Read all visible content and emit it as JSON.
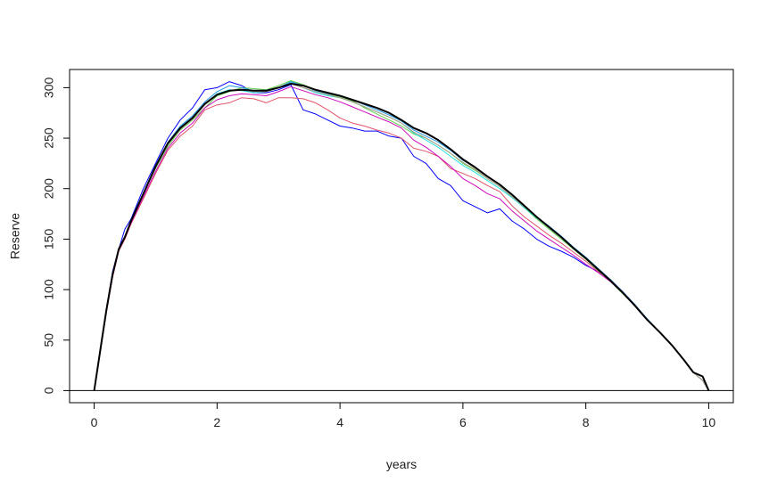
{
  "chart_data": {
    "type": "line",
    "title": "",
    "xlabel": "years",
    "ylabel": "Reserve",
    "xlim": [
      -0.4,
      10.4
    ],
    "ylim": [
      -12,
      318
    ],
    "xticks": [
      0,
      2,
      4,
      6,
      8,
      10
    ],
    "yticks": [
      0,
      50,
      100,
      150,
      200,
      250,
      300
    ],
    "xtick_labels": [
      "0",
      "2",
      "4",
      "6",
      "8",
      "10"
    ],
    "ytick_labels": [
      "0",
      "50",
      "100",
      "150",
      "200",
      "250",
      "300"
    ],
    "grid": false,
    "legend": "none",
    "reference_line_y": 0,
    "series": [
      {
        "color": "#0000ff",
        "width": 1,
        "x": [
          0,
          0.1,
          0.2,
          0.3,
          0.4,
          0.5,
          0.6,
          0.8,
          1.0,
          1.2,
          1.4,
          1.6,
          1.8,
          2.0,
          2.2,
          2.4,
          2.6,
          2.8,
          3.0,
          3.2,
          3.4,
          3.6,
          3.8,
          4.0,
          4.2,
          4.4,
          4.6,
          4.8,
          5.0,
          5.2,
          5.4,
          5.6,
          5.8,
          6.0,
          6.2,
          6.4,
          6.6,
          6.8,
          7.0,
          7.2,
          7.4,
          7.6,
          7.8,
          8.0,
          8.2,
          8.4,
          8.6,
          8.8,
          9.0,
          9.2,
          9.4,
          9.6,
          9.75,
          9.9,
          10.0
        ],
        "y": [
          0,
          40,
          80,
          118,
          140,
          160,
          170,
          200,
          225,
          250,
          268,
          280,
          298,
          300,
          306,
          302,
          295,
          295,
          298,
          303,
          278,
          274,
          268,
          262,
          260,
          257,
          257,
          252,
          250,
          232,
          225,
          210,
          203,
          188,
          182,
          176,
          180,
          168,
          160,
          150,
          143,
          138,
          132,
          124,
          118,
          110,
          98,
          85,
          70,
          58,
          45,
          30,
          18,
          10,
          0
        ]
      },
      {
        "color": "#df536b",
        "width": 1,
        "x": [
          0,
          0.1,
          0.2,
          0.3,
          0.4,
          0.5,
          0.6,
          0.8,
          1.0,
          1.2,
          1.4,
          1.6,
          1.8,
          2.0,
          2.2,
          2.4,
          2.6,
          2.8,
          3.0,
          3.2,
          3.4,
          3.6,
          3.8,
          4.0,
          4.2,
          4.4,
          4.6,
          4.8,
          5.0,
          5.2,
          5.4,
          5.6,
          5.8,
          6.0,
          6.2,
          6.4,
          6.6,
          6.8,
          7.0,
          7.2,
          7.4,
          7.6,
          7.8,
          8.0,
          8.2,
          8.4,
          8.6,
          8.8,
          9.0,
          9.2,
          9.4,
          9.6,
          9.75,
          9.9,
          10.0
        ],
        "y": [
          0,
          38,
          78,
          112,
          138,
          150,
          165,
          190,
          215,
          238,
          252,
          262,
          278,
          283,
          285,
          290,
          289,
          285,
          290,
          290,
          289,
          285,
          278,
          270,
          265,
          262,
          258,
          255,
          250,
          240,
          237,
          232,
          220,
          215,
          210,
          203,
          197,
          183,
          172,
          163,
          154,
          146,
          137,
          128,
          118,
          110,
          98,
          85,
          70,
          58,
          45,
          30,
          18,
          10,
          0
        ]
      },
      {
        "color": "#61d04f",
        "width": 1,
        "x": [
          0,
          0.1,
          0.2,
          0.3,
          0.4,
          0.5,
          0.6,
          0.8,
          1.0,
          1.2,
          1.4,
          1.6,
          1.8,
          2.0,
          2.2,
          2.4,
          2.6,
          2.8,
          3.0,
          3.2,
          3.4,
          3.6,
          3.8,
          4.0,
          4.2,
          4.4,
          4.6,
          4.8,
          5.0,
          5.2,
          5.4,
          5.6,
          5.8,
          6.0,
          6.2,
          6.4,
          6.6,
          6.8,
          7.0,
          7.2,
          7.4,
          7.6,
          7.8,
          8.0,
          8.2,
          8.4,
          8.6,
          8.8,
          9.0,
          9.2,
          9.4,
          9.6,
          9.75,
          9.9,
          10.0
        ],
        "y": [
          0,
          40,
          80,
          115,
          140,
          152,
          168,
          195,
          220,
          242,
          258,
          268,
          280,
          292,
          296,
          300,
          299,
          298,
          302,
          307,
          303,
          298,
          294,
          291,
          287,
          280,
          274,
          268,
          262,
          254,
          250,
          243,
          235,
          225,
          218,
          210,
          202,
          192,
          181,
          170,
          160,
          150,
          140,
          130,
          119,
          108,
          96,
          84,
          70,
          58,
          45,
          30,
          18,
          10,
          0
        ]
      },
      {
        "color": "#2297e6",
        "width": 1,
        "x": [
          0,
          0.1,
          0.2,
          0.3,
          0.4,
          0.5,
          0.6,
          0.8,
          1.0,
          1.2,
          1.4,
          1.6,
          1.8,
          2.0,
          2.2,
          2.4,
          2.6,
          2.8,
          3.0,
          3.2,
          3.4,
          3.6,
          3.8,
          4.0,
          4.2,
          4.4,
          4.6,
          4.8,
          5.0,
          5.2,
          5.4,
          5.6,
          5.8,
          6.0,
          6.2,
          6.4,
          6.6,
          6.8,
          7.0,
          7.2,
          7.4,
          7.6,
          7.8,
          8.0,
          8.2,
          8.4,
          8.6,
          8.8,
          9.0,
          9.2,
          9.4,
          9.6,
          9.75,
          9.9,
          10.0
        ],
        "y": [
          0,
          40,
          80,
          115,
          140,
          152,
          168,
          195,
          222,
          246,
          262,
          272,
          286,
          296,
          302,
          300,
          297,
          296,
          300,
          306,
          302,
          297,
          294,
          292,
          288,
          283,
          278,
          273,
          267,
          258,
          252,
          246,
          238,
          228,
          221,
          212,
          204,
          194,
          183,
          172,
          163,
          153,
          142,
          132,
          121,
          110,
          98,
          85,
          71,
          58,
          45,
          30,
          18,
          10,
          0
        ]
      },
      {
        "color": "#28e2e5",
        "width": 1,
        "x": [
          0,
          0.1,
          0.2,
          0.3,
          0.4,
          0.5,
          0.6,
          0.8,
          1.0,
          1.2,
          1.4,
          1.6,
          1.8,
          2.0,
          2.2,
          2.4,
          2.6,
          2.8,
          3.0,
          3.2,
          3.4,
          3.6,
          3.8,
          4.0,
          4.2,
          4.4,
          4.6,
          4.8,
          5.0,
          5.2,
          5.4,
          5.6,
          5.8,
          6.0,
          6.2,
          6.4,
          6.6,
          6.8,
          7.0,
          7.2,
          7.4,
          7.6,
          7.8,
          8.0,
          8.2,
          8.4,
          8.6,
          8.8,
          9.0,
          9.2,
          9.4,
          9.6,
          9.75,
          9.9,
          10.0
        ],
        "y": [
          0,
          40,
          80,
          115,
          140,
          152,
          168,
          195,
          222,
          245,
          260,
          270,
          284,
          294,
          298,
          297,
          295,
          296,
          300,
          305,
          300,
          295,
          292,
          290,
          286,
          281,
          276,
          271,
          265,
          255,
          248,
          241,
          232,
          223,
          216,
          208,
          200,
          191,
          181,
          171,
          162,
          152,
          141,
          131,
          120,
          109,
          97,
          84,
          70,
          58,
          45,
          30,
          18,
          10,
          0
        ]
      },
      {
        "color": "#cd0bbc",
        "width": 1,
        "x": [
          0,
          0.1,
          0.2,
          0.3,
          0.4,
          0.5,
          0.6,
          0.8,
          1.0,
          1.2,
          1.4,
          1.6,
          1.8,
          2.0,
          2.2,
          2.4,
          2.6,
          2.8,
          3.0,
          3.2,
          3.4,
          3.6,
          3.8,
          4.0,
          4.2,
          4.4,
          4.6,
          4.8,
          5.0,
          5.2,
          5.4,
          5.6,
          5.8,
          6.0,
          6.2,
          6.4,
          6.6,
          6.8,
          7.0,
          7.2,
          7.4,
          7.6,
          7.8,
          8.0,
          8.2,
          8.4,
          8.6,
          8.8,
          9.0,
          9.2,
          9.4,
          9.6,
          9.75,
          9.9,
          10.0
        ],
        "y": [
          0,
          38,
          78,
          113,
          139,
          151,
          166,
          192,
          217,
          240,
          255,
          265,
          280,
          288,
          292,
          294,
          293,
          292,
          296,
          301,
          297,
          293,
          290,
          286,
          281,
          276,
          271,
          266,
          260,
          248,
          241,
          232,
          222,
          210,
          203,
          195,
          190,
          178,
          168,
          158,
          150,
          142,
          134,
          125,
          117,
          108,
          97,
          84,
          70,
          58,
          45,
          30,
          18,
          10,
          0
        ]
      },
      {
        "color": "#f5c710",
        "width": 1,
        "x": [
          0,
          0.1,
          0.2,
          0.3,
          0.4,
          0.5,
          0.6,
          0.8,
          1.0,
          1.2,
          1.4,
          1.6,
          1.8,
          2.0,
          2.2,
          2.4,
          2.6,
          2.8,
          3.0,
          3.2,
          3.4,
          3.6,
          3.8,
          4.0,
          4.2,
          4.4,
          4.6,
          4.8,
          5.0,
          5.2,
          5.4,
          5.6,
          5.8,
          6.0,
          6.2,
          6.4,
          6.6,
          6.8,
          7.0,
          7.2,
          7.4,
          7.6,
          7.8,
          8.0,
          8.2,
          8.4,
          8.6,
          8.8,
          9.0,
          9.2,
          9.4,
          9.6,
          9.75,
          9.9,
          10.0
        ],
        "y": [
          0,
          40,
          80,
          115,
          140,
          152,
          168,
          195,
          221,
          244,
          259,
          269,
          283,
          293,
          297,
          298,
          296,
          296,
          300,
          304,
          300,
          296,
          293,
          290,
          286,
          281,
          276,
          271,
          265,
          256,
          250,
          243,
          235,
          226,
          219,
          210,
          202,
          192,
          182,
          172,
          162,
          152,
          141,
          131,
          120,
          109,
          97,
          84,
          70,
          58,
          45,
          30,
          18,
          10,
          0
        ]
      },
      {
        "color": "#9e9e9e",
        "width": 1,
        "x": [
          0,
          0.1,
          0.2,
          0.3,
          0.4,
          0.5,
          0.6,
          0.8,
          1.0,
          1.2,
          1.4,
          1.6,
          1.8,
          2.0,
          2.2,
          2.4,
          2.6,
          2.8,
          3.0,
          3.2,
          3.4,
          3.6,
          3.8,
          4.0,
          4.2,
          4.4,
          4.6,
          4.8,
          5.0,
          5.2,
          5.4,
          5.6,
          5.8,
          6.0,
          6.2,
          6.4,
          6.6,
          6.8,
          7.0,
          7.2,
          7.4,
          7.6,
          7.8,
          8.0,
          8.2,
          8.4,
          8.6,
          8.8,
          9.0,
          9.2,
          9.4,
          9.6,
          9.75,
          9.9,
          10.0
        ],
        "y": [
          0,
          40,
          80,
          115,
          140,
          152,
          168,
          195,
          221,
          244,
          259,
          269,
          283,
          293,
          297,
          298,
          296,
          296,
          300,
          304,
          300,
          296,
          293,
          290,
          286,
          281,
          276,
          271,
          265,
          256,
          250,
          243,
          235,
          226,
          219,
          210,
          202,
          192,
          182,
          172,
          162,
          152,
          141,
          131,
          120,
          109,
          97,
          84,
          70,
          58,
          45,
          30,
          18,
          10,
          0
        ]
      },
      {
        "color": "#000000",
        "width": 2,
        "x": [
          0,
          0.1,
          0.2,
          0.3,
          0.4,
          0.5,
          0.6,
          0.8,
          1.0,
          1.2,
          1.4,
          1.6,
          1.8,
          2.0,
          2.2,
          2.4,
          2.6,
          2.8,
          3.0,
          3.2,
          3.4,
          3.6,
          3.8,
          4.0,
          4.2,
          4.4,
          4.6,
          4.8,
          5.0,
          5.2,
          5.4,
          5.6,
          5.8,
          6.0,
          6.2,
          6.4,
          6.6,
          6.8,
          7.0,
          7.2,
          7.4,
          7.6,
          7.8,
          8.0,
          8.2,
          8.4,
          8.6,
          8.8,
          9.0,
          9.2,
          9.4,
          9.6,
          9.75,
          9.9,
          10.0
        ],
        "y": [
          0,
          40,
          80,
          115,
          140,
          152,
          168,
          195,
          222,
          245,
          260,
          270,
          284,
          293,
          297,
          298,
          297,
          297,
          300,
          304,
          302,
          298,
          295,
          292,
          288,
          284,
          280,
          275,
          268,
          260,
          255,
          248,
          239,
          229,
          221,
          212,
          204,
          194,
          183,
          172,
          162,
          152,
          141,
          131,
          120,
          109,
          97,
          84,
          70,
          58,
          45,
          30,
          18,
          14,
          0
        ]
      }
    ]
  }
}
